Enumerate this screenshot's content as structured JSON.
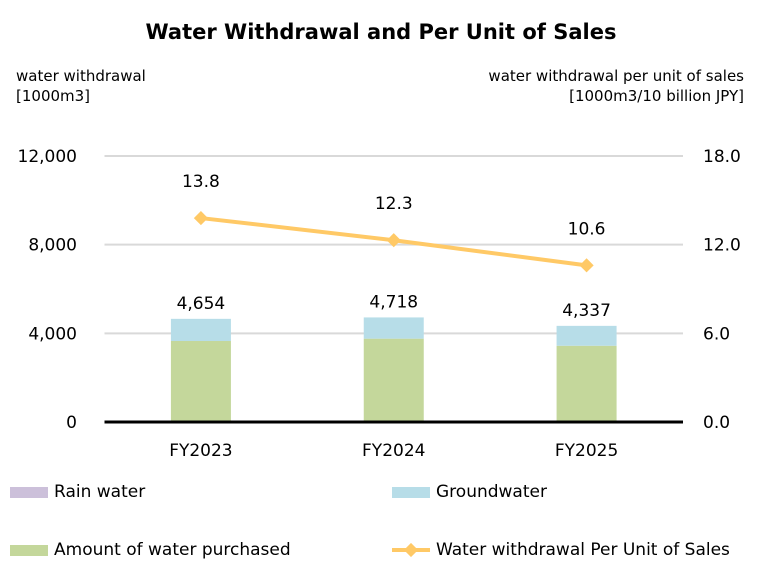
{
  "chart_data": {
    "type": "bar",
    "title": "Water Withdrawal and Per Unit of Sales",
    "ylabel_left": [
      "water withdrawal",
      "[1000m3]"
    ],
    "ylabel_right": [
      "water withdrawal per unit of sales",
      "[1000m3/10 billion JPY]"
    ],
    "categories": [
      "FY2023",
      "FY2024",
      "FY2025"
    ],
    "ylim_left": [
      0,
      12000
    ],
    "yticks_left": [
      "0",
      "4,000",
      "8,000",
      "12,000"
    ],
    "ylim_right": [
      0,
      18
    ],
    "yticks_right": [
      "0.0",
      "6.0",
      "12.0",
      "18.0"
    ],
    "grid": true,
    "legend_position": "bottom",
    "stacked_series": [
      {
        "name": "Amount of water purchased",
        "color": "#c4d79b",
        "values": [
          3654,
          3760,
          3440
        ]
      },
      {
        "name": "Groundwater",
        "color": "#b7dde8",
        "values": [
          1000,
          958,
          897
        ]
      },
      {
        "name": "Rain water",
        "color": "#ccc0da",
        "values": [
          0,
          0,
          0
        ]
      }
    ],
    "totals": [
      "4,654",
      "4,718",
      "4,337"
    ],
    "line_series": {
      "name": "Water withdrawal Per Unit of Sales",
      "color": "#ffc966",
      "values": [
        13.8,
        12.3,
        10.6
      ],
      "labels": [
        "13.8",
        "12.3",
        "10.6"
      ],
      "axis": "right"
    }
  },
  "legend_order": [
    "Rain water",
    "Groundwater",
    "Amount of water purchased",
    "Water withdrawal Per Unit of Sales"
  ]
}
